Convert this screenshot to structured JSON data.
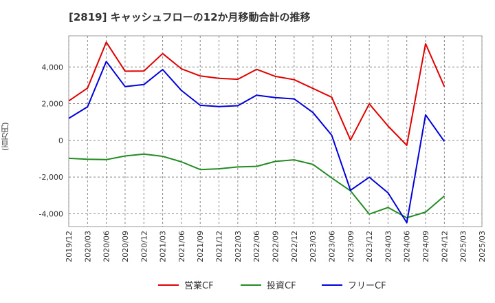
{
  "chart_data": {
    "type": "line",
    "title": "[2819]  キャッシュフローの12か月移動合計の推移",
    "ylabel": "(百万円)",
    "xlabel": "",
    "ylim": [
      -4700,
      5700
    ],
    "yticks": [
      -4000,
      -2000,
      0,
      2000,
      4000
    ],
    "ytick_labels": [
      "-4,000",
      "-2,000",
      "0",
      "2,000",
      "4,000"
    ],
    "xtick_labels": [
      "2019/12",
      "2020/03",
      "2020/06",
      "2020/09",
      "2020/12",
      "2021/03",
      "2021/06",
      "2021/09",
      "2021/12",
      "2022/03",
      "2022/06",
      "2022/09",
      "2022/12",
      "2023/03",
      "2023/06",
      "2023/09",
      "2023/12",
      "2024/03",
      "2024/06",
      "2024/09",
      "2024/12",
      "2025/03",
      "2025/03"
    ],
    "x": [
      "2019/12",
      "2020/03",
      "2020/06",
      "2020/09",
      "2020/12",
      "2021/03",
      "2021/06",
      "2021/09",
      "2021/12",
      "2022/03",
      "2022/06",
      "2022/09",
      "2022/12",
      "2023/03",
      "2023/06",
      "2023/09",
      "2023/12",
      "2024/03",
      "2024/06",
      "2024/09",
      "2024/12"
    ],
    "series": [
      {
        "name": "営業CF",
        "color": "#e00000",
        "values": [
          2150,
          2850,
          5350,
          3770,
          3780,
          4730,
          3900,
          3510,
          3380,
          3330,
          3870,
          3490,
          3310,
          2830,
          2350,
          20,
          1990,
          780,
          -270,
          5270,
          2930
        ]
      },
      {
        "name": "投資CF",
        "color": "#228b22",
        "values": [
          -980,
          -1030,
          -1050,
          -850,
          -750,
          -870,
          -1170,
          -1590,
          -1550,
          -1450,
          -1420,
          -1150,
          -1060,
          -1310,
          -2050,
          -2750,
          -4020,
          -3660,
          -4220,
          -3910,
          -3030
        ]
      },
      {
        "name": "フリーCF",
        "color": "#0000dd",
        "values": [
          1200,
          1830,
          4300,
          2930,
          3040,
          3860,
          2720,
          1910,
          1840,
          1890,
          2460,
          2330,
          2260,
          1520,
          280,
          -2720,
          -2010,
          -2860,
          -4490,
          1390,
          -60
        ]
      }
    ],
    "legend_position": "bottom"
  }
}
